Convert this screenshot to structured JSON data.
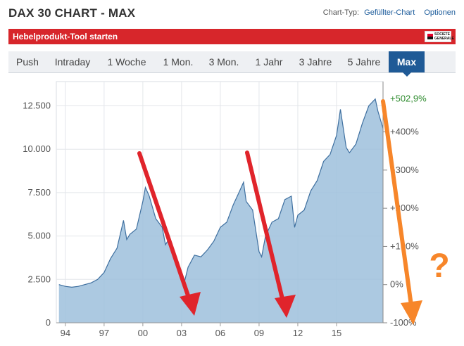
{
  "header": {
    "title": "DAX 30 CHART - MAX",
    "chart_type_label": "Chart-Typ:",
    "chart_type_value": "Gefüllter-Chart",
    "options": "Optionen"
  },
  "banner": {
    "label": "Hebelprodukt-Tool starten",
    "logo_line1": "SOCIETE",
    "logo_line2": "GENERALE",
    "brand_color": "#d7262b"
  },
  "tabs": [
    {
      "label": "Push",
      "active": false
    },
    {
      "label": "Intraday",
      "active": false
    },
    {
      "label": "1 Woche",
      "active": false
    },
    {
      "label": "1 Mon.",
      "active": false
    },
    {
      "label": "3 Mon.",
      "active": false
    },
    {
      "label": "1 Jahr",
      "active": false
    },
    {
      "label": "3 Jahre",
      "active": false
    },
    {
      "label": "5 Jahre",
      "active": false
    },
    {
      "label": "Max",
      "active": true
    }
  ],
  "annotation": {
    "question_mark": "?"
  },
  "chart_data": {
    "type": "area",
    "title": "DAX 30 CHART - MAX",
    "xlabel": "",
    "ylabel": "",
    "x": [
      1993.5,
      1994.0,
      1994.5,
      1995.0,
      1995.5,
      1996.0,
      1996.5,
      1997.0,
      1997.5,
      1998.0,
      1998.5,
      1998.75,
      1999.0,
      1999.5,
      2000.0,
      2000.2,
      2000.5,
      2001.0,
      2001.5,
      2001.75,
      2002.0,
      2002.5,
      2003.0,
      2003.2,
      2003.5,
      2004.0,
      2004.5,
      2005.0,
      2005.5,
      2006.0,
      2006.5,
      2007.0,
      2007.5,
      2007.8,
      2008.0,
      2008.5,
      2009.0,
      2009.2,
      2009.5,
      2010.0,
      2010.5,
      2011.0,
      2011.5,
      2011.75,
      2012.0,
      2012.5,
      2013.0,
      2013.5,
      2014.0,
      2014.5,
      2015.0,
      2015.3,
      2015.75,
      2016.0,
      2016.5,
      2017.0,
      2017.5,
      2018.0,
      2018.2,
      2018.6
    ],
    "values": [
      2200,
      2100,
      2050,
      2100,
      2200,
      2300,
      2500,
      2900,
      3700,
      4300,
      5900,
      4800,
      5100,
      5400,
      7000,
      7800,
      7300,
      6000,
      5500,
      4500,
      4800,
      3500,
      2800,
      2300,
      3200,
      3900,
      3800,
      4200,
      4700,
      5500,
      5800,
      6800,
      7600,
      8100,
      7000,
      6500,
      4100,
      3800,
      5000,
      5800,
      6000,
      7100,
      7300,
      5500,
      6200,
      6500,
      7600,
      8200,
      9300,
      9700,
      10800,
      12300,
      10100,
      9800,
      10300,
      11500,
      12500,
      12900,
      12200,
      11200
    ],
    "xlim": [
      1993.3,
      2018.6
    ],
    "ylim": [
      0,
      13900
    ],
    "x_tick_labels": [
      "94",
      "97",
      "00",
      "03",
      "06",
      "09",
      "12",
      "15"
    ],
    "x_tick_years": [
      1994,
      1997,
      2000,
      2003,
      2006,
      2009,
      2012,
      2015
    ],
    "y_ticks": [
      0,
      2500,
      5000,
      7500,
      10000,
      12500
    ],
    "y_tick_labels": [
      "0",
      "2.500",
      "5.000",
      "7.500",
      "10.000",
      "12.500"
    ],
    "y2_tick_labels": [
      "-100%",
      "0%",
      "+100%",
      "+200%",
      "+300%",
      "+400%"
    ],
    "y2_ticks": [
      -100,
      0,
      100,
      200,
      300,
      400
    ],
    "last_change_label": "+502,9%",
    "grid": true,
    "fill_color": "#9ebfdc",
    "line_color": "#3e6f9f"
  }
}
